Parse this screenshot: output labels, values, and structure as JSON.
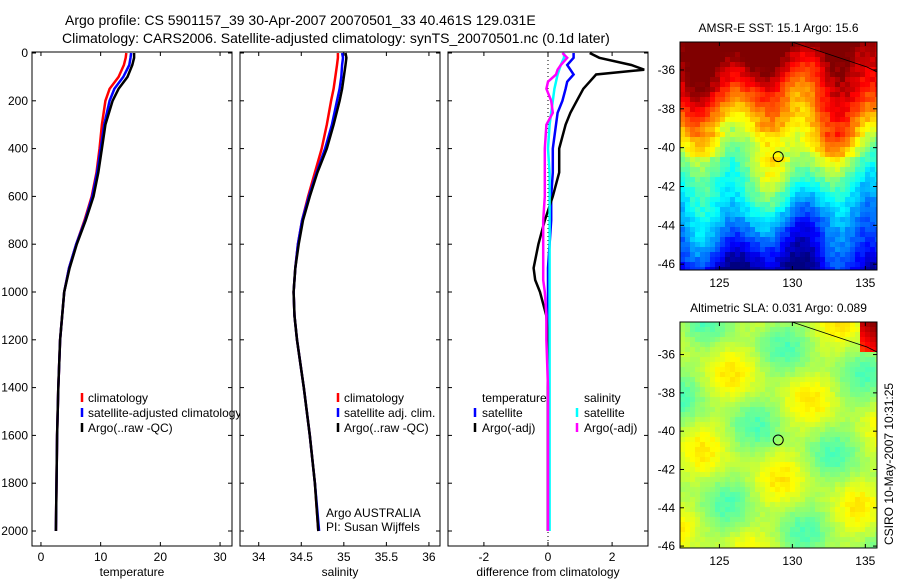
{
  "title_line1": "Argo profile: CS 5901157_39 30-Apr-2007 20070501_33 40.461S 129.031E",
  "title_line2": "Climatology: CARS2006. Satellite-adjusted climatology: synTS_20070501.nc (0.1d later)",
  "side_label": "CSIRO 10-May-2007 10:31:25",
  "colors": {
    "climatology": "#ff0000",
    "satellite": "#0000ff",
    "argo": "#000000",
    "sal_satellite": "#00ffff",
    "sal_argo": "#ff00ff"
  },
  "chart_data": [
    {
      "type": "line",
      "name": "temperature",
      "xlabel": "temperature",
      "ylabel": "",
      "xlim": [
        -1.5,
        32
      ],
      "ylim": [
        2000,
        0
      ],
      "xticks": [
        "0",
        "10",
        "20",
        "30"
      ],
      "xtickvals": [
        0,
        10,
        20,
        30
      ],
      "yticks": [
        "0",
        "200",
        "400",
        "600",
        "800",
        "1000",
        "1200",
        "1400",
        "1600",
        "1800",
        "2000"
      ],
      "depth": [
        0,
        20,
        50,
        100,
        150,
        200,
        300,
        400,
        500,
        600,
        700,
        800,
        900,
        1000,
        1200,
        1400,
        1600,
        1800,
        2000
      ],
      "series": [
        {
          "name": "climatology",
          "color": "#ff0000",
          "values": [
            14.3,
            14.2,
            13.9,
            13.0,
            11.5,
            10.8,
            10.2,
            9.8,
            9.3,
            8.5,
            7.3,
            5.9,
            4.7,
            3.9,
            3.2,
            2.9,
            2.7,
            2.6,
            2.5
          ]
        },
        {
          "name": "satellite-adjusted climatology",
          "color": "#0000ff",
          "values": [
            15.1,
            15.0,
            14.8,
            13.8,
            12.3,
            11.5,
            10.6,
            10.0,
            9.4,
            8.6,
            7.4,
            5.9,
            4.7,
            3.9,
            3.2,
            2.9,
            2.7,
            2.6,
            2.5
          ]
        },
        {
          "name": "Argo(..raw -QC)",
          "color": "#000000",
          "values": [
            15.6,
            15.6,
            15.3,
            14.5,
            13.0,
            12.0,
            10.8,
            10.2,
            9.6,
            8.8,
            7.5,
            6.0,
            4.8,
            3.9,
            3.2,
            2.9,
            2.7,
            2.6,
            2.5
          ]
        }
      ],
      "legend": [
        "climatology",
        "satellite-adjusted climatology",
        "Argo(..raw -QC)"
      ]
    },
    {
      "type": "line",
      "name": "salinity",
      "xlabel": "salinity",
      "xlim": [
        33.78,
        36.13
      ],
      "ylim": [
        2000,
        0
      ],
      "xticks": [
        "34",
        "34.5",
        "35",
        "35.5",
        "36"
      ],
      "xtickvals": [
        34,
        34.5,
        35,
        35.5,
        36
      ],
      "depth": [
        0,
        20,
        50,
        100,
        150,
        200,
        300,
        400,
        500,
        600,
        700,
        800,
        900,
        1000,
        1100,
        1200,
        1400,
        1600,
        1800,
        2000
      ],
      "series": [
        {
          "name": "climatology",
          "color": "#ff0000",
          "values": [
            34.93,
            34.93,
            34.92,
            34.9,
            34.88,
            34.85,
            34.8,
            34.74,
            34.66,
            34.58,
            34.51,
            34.46,
            34.43,
            34.41,
            34.42,
            34.45,
            34.53,
            34.6,
            34.66,
            34.7
          ]
        },
        {
          "name": "satellite adj. clim.",
          "color": "#0000ff",
          "values": [
            34.98,
            34.99,
            34.98,
            34.97,
            34.95,
            34.92,
            34.86,
            34.78,
            34.68,
            34.59,
            34.51,
            34.46,
            34.43,
            34.41,
            34.42,
            34.45,
            34.53,
            34.6,
            34.66,
            34.71
          ]
        },
        {
          "name": "Argo(..raw -QC)",
          "color": "#000000",
          "values": [
            35.02,
            35.03,
            35.02,
            35.0,
            34.98,
            34.95,
            34.88,
            34.8,
            34.69,
            34.6,
            34.52,
            34.47,
            34.43,
            34.41,
            34.42,
            34.45,
            34.53,
            34.6,
            34.66,
            34.7
          ]
        }
      ],
      "legend": [
        "climatology",
        "satellite adj. clim.",
        "Argo(..raw -QC)"
      ],
      "annotation": [
        "Argo AUSTRALIA",
        "PI: Susan Wijffels"
      ]
    },
    {
      "type": "line",
      "name": "difference",
      "xlabel": "difference from climatology",
      "xlim": [
        -3.12,
        3.12
      ],
      "ylim": [
        2000,
        0
      ],
      "xticks": [
        "-2",
        "0",
        "2"
      ],
      "xtickvals": [
        -2,
        0,
        2
      ],
      "depth": [
        0,
        20,
        50,
        70,
        90,
        120,
        150,
        200,
        250,
        300,
        400,
        500,
        600,
        700,
        800,
        900,
        950,
        1000,
        1100,
        1200,
        1400,
        1600,
        1800,
        2000
      ],
      "series": [
        {
          "name": "temperature satellite",
          "color": "#0000ff",
          "values": [
            0.8,
            0.8,
            0.6,
            0.7,
            0.8,
            0.6,
            0.55,
            0.45,
            0.3,
            0.25,
            0.15,
            0.15,
            0.1,
            0.1,
            0.05,
            0.0,
            0.0,
            0.0,
            0.0,
            0.0,
            0.0,
            0.0,
            0.0,
            0.0
          ]
        },
        {
          "name": "temperature Argo(-adj)",
          "color": "#000000",
          "values": [
            1.3,
            1.6,
            2.6,
            3.0,
            1.5,
            1.3,
            1.1,
            0.9,
            0.7,
            0.55,
            0.35,
            0.35,
            0.15,
            -0.1,
            -0.3,
            -0.45,
            -0.4,
            -0.25,
            -0.05,
            0.0,
            0.0,
            0.0,
            0.0,
            0.0
          ]
        },
        {
          "name": "salinity satellite",
          "color": "#00ffff",
          "values": [
            0.5,
            0.5,
            0.4,
            0.35,
            0.3,
            0.25,
            0.2,
            0.15,
            0.1,
            0.05,
            0.0,
            0.05,
            0.05,
            0.05,
            0.05,
            0.05,
            0.05,
            0.05,
            0.05,
            0.05,
            0.05,
            0.05,
            0.05,
            0.05
          ]
        },
        {
          "name": "salinity Argo(-adj)",
          "color": "#ff00ff",
          "values": [
            0.45,
            0.6,
            0.4,
            0.3,
            0.25,
            0.0,
            -0.05,
            0.1,
            0.15,
            -0.05,
            -0.1,
            -0.1,
            -0.1,
            -0.15,
            -0.15,
            -0.15,
            -0.15,
            -0.1,
            -0.05,
            -0.05,
            0.0,
            0.0,
            0.0,
            0.0
          ]
        }
      ],
      "legend_temperature": {
        "header": "temperature",
        "items": [
          "satellite",
          "Argo(-adj)"
        ]
      },
      "legend_salinity": {
        "header": "salinity",
        "items": [
          "satellite",
          "Argo(-adj)"
        ]
      }
    },
    {
      "type": "heatmap",
      "name": "sst-map",
      "title": "AMSR-E SST: 15.1 Argo: 15.6",
      "xlim": [
        122.3,
        135.8
      ],
      "ylim": [
        -46.3,
        -34.56
      ],
      "xticks": [
        "125",
        "130",
        "135"
      ],
      "xtickvals": [
        125,
        130,
        135
      ],
      "yticks": [
        "-36",
        "-38",
        "-40",
        "-42",
        "-44",
        "-46"
      ],
      "ytickvals": [
        -36,
        -38,
        -40,
        -42,
        -44,
        -46
      ],
      "marker": {
        "lon": 129.031,
        "lat": -40.461
      }
    },
    {
      "type": "heatmap",
      "name": "sla-map",
      "title": "Altimetric SLA: 0.031 Argo: 0.089",
      "xlim": [
        122.3,
        135.8
      ],
      "ylim": [
        -46.1,
        -34.3
      ],
      "xticks": [
        "125",
        "130",
        "135"
      ],
      "xtickvals": [
        125,
        130,
        135
      ],
      "yticks": [
        "-36",
        "-38",
        "-40",
        "-42",
        "-44",
        "-46"
      ],
      "ytickvals": [
        -36,
        -38,
        -40,
        -42,
        -44,
        -46
      ],
      "marker": {
        "lon": 129.031,
        "lat": -40.461
      }
    }
  ]
}
